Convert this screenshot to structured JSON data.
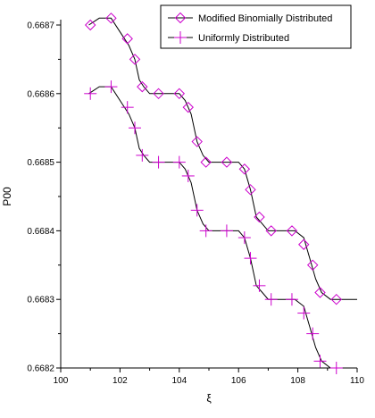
{
  "chart_data": {
    "type": "line",
    "xlabel": "ξ",
    "ylabel": "P00",
    "xlim": [
      100,
      110
    ],
    "ylim": [
      0.6682,
      0.6687
    ],
    "x_ticks": [
      "100",
      "102",
      "104",
      "106",
      "108",
      "110"
    ],
    "y_ticks": [
      "0.6682",
      "0.6683",
      "0.6684",
      "0.6685",
      "0.6686",
      "0.6687"
    ],
    "grid": false,
    "legend_position": "top-right",
    "line_color": "#000000",
    "marker_color": "#cc00cc",
    "series": [
      {
        "name": "Modified Binomially Distributed",
        "marker": "diamond",
        "curve": [
          [
            100.95,
            0.6687
          ],
          [
            101.3,
            0.66871
          ],
          [
            101.7,
            0.66871
          ],
          [
            102.0,
            0.66869
          ],
          [
            102.3,
            0.66867
          ],
          [
            102.5,
            0.66865
          ],
          [
            102.65,
            0.66862
          ],
          [
            102.8,
            0.66861
          ],
          [
            103.0,
            0.6686
          ],
          [
            103.5,
            0.6686
          ],
          [
            104.0,
            0.6686
          ],
          [
            104.2,
            0.66859
          ],
          [
            104.4,
            0.66857
          ],
          [
            104.6,
            0.66853
          ],
          [
            104.8,
            0.66851
          ],
          [
            105.0,
            0.6685
          ],
          [
            105.5,
            0.6685
          ],
          [
            106.0,
            0.6685
          ],
          [
            106.2,
            0.66849
          ],
          [
            106.4,
            0.66846
          ],
          [
            106.6,
            0.66842
          ],
          [
            106.8,
            0.66841
          ],
          [
            107.0,
            0.6684
          ],
          [
            107.5,
            0.6684
          ],
          [
            107.9,
            0.6684
          ],
          [
            108.2,
            0.66839
          ],
          [
            108.4,
            0.66836
          ],
          [
            108.6,
            0.66833
          ],
          [
            108.8,
            0.66831
          ],
          [
            109.1,
            0.6683
          ],
          [
            109.5,
            0.6683
          ],
          [
            110.0,
            0.6683
          ]
        ],
        "markers": [
          [
            101.0,
            0.6687
          ],
          [
            101.7,
            0.66871
          ],
          [
            102.25,
            0.66868
          ],
          [
            102.5,
            0.66865
          ],
          [
            102.75,
            0.66861
          ],
          [
            103.3,
            0.6686
          ],
          [
            104.0,
            0.6686
          ],
          [
            104.3,
            0.66858
          ],
          [
            104.6,
            0.66853
          ],
          [
            104.9,
            0.6685
          ],
          [
            105.6,
            0.6685
          ],
          [
            106.2,
            0.66849
          ],
          [
            106.4,
            0.66846
          ],
          [
            106.7,
            0.66842
          ],
          [
            107.1,
            0.6684
          ],
          [
            107.8,
            0.6684
          ],
          [
            108.2,
            0.66838
          ],
          [
            108.5,
            0.66835
          ],
          [
            108.75,
            0.66831
          ],
          [
            109.3,
            0.6683
          ]
        ]
      },
      {
        "name": "Uniformly Distributed",
        "marker": "plus",
        "curve": [
          [
            100.95,
            0.6686
          ],
          [
            101.3,
            0.66861
          ],
          [
            101.7,
            0.66861
          ],
          [
            102.0,
            0.66859
          ],
          [
            102.3,
            0.66857
          ],
          [
            102.5,
            0.66855
          ],
          [
            102.65,
            0.66852
          ],
          [
            102.8,
            0.66851
          ],
          [
            103.0,
            0.6685
          ],
          [
            103.5,
            0.6685
          ],
          [
            104.0,
            0.6685
          ],
          [
            104.2,
            0.66849
          ],
          [
            104.4,
            0.66847
          ],
          [
            104.6,
            0.66843
          ],
          [
            104.8,
            0.66841
          ],
          [
            105.0,
            0.6684
          ],
          [
            105.5,
            0.6684
          ],
          [
            106.0,
            0.6684
          ],
          [
            106.2,
            0.66839
          ],
          [
            106.4,
            0.66836
          ],
          [
            106.6,
            0.66832
          ],
          [
            106.8,
            0.66831
          ],
          [
            107.0,
            0.6683
          ],
          [
            107.5,
            0.6683
          ],
          [
            107.9,
            0.6683
          ],
          [
            108.2,
            0.66829
          ],
          [
            108.4,
            0.66826
          ],
          [
            108.6,
            0.66823
          ],
          [
            108.8,
            0.66821
          ],
          [
            109.1,
            0.6682
          ],
          [
            109.5,
            0.6682
          ],
          [
            110.0,
            0.6682
          ]
        ],
        "markers": [
          [
            101.0,
            0.6686
          ],
          [
            101.7,
            0.66861
          ],
          [
            102.25,
            0.66858
          ],
          [
            102.5,
            0.66855
          ],
          [
            102.75,
            0.66851
          ],
          [
            103.3,
            0.6685
          ],
          [
            104.0,
            0.6685
          ],
          [
            104.3,
            0.66848
          ],
          [
            104.6,
            0.66843
          ],
          [
            104.9,
            0.6684
          ],
          [
            105.6,
            0.6684
          ],
          [
            106.2,
            0.66839
          ],
          [
            106.4,
            0.66836
          ],
          [
            106.7,
            0.66832
          ],
          [
            107.1,
            0.6683
          ],
          [
            107.8,
            0.6683
          ],
          [
            108.2,
            0.66828
          ],
          [
            108.5,
            0.66825
          ],
          [
            108.75,
            0.66821
          ],
          [
            109.3,
            0.6682
          ]
        ]
      }
    ]
  }
}
